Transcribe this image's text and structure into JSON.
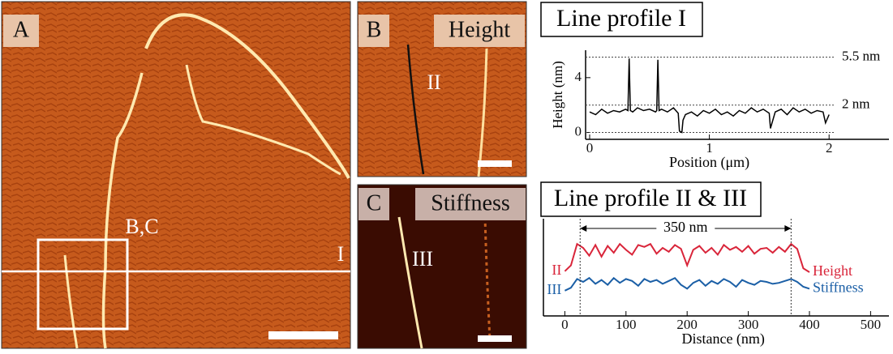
{
  "images": [
    {
      "label": "A",
      "annotations": [
        "B,C",
        "I"
      ]
    },
    {
      "label": "B",
      "title": "Height",
      "annotations": [
        "II"
      ]
    },
    {
      "label": "C",
      "title": "Stiffness",
      "annotations": [
        "III"
      ]
    }
  ],
  "chart_data": [
    {
      "type": "line",
      "title": "Line profile I",
      "xlabel": "Position (μm)",
      "ylabel": "Height (nm)",
      "color": "#000000",
      "x": [
        0,
        0.05,
        0.1,
        0.15,
        0.2,
        0.25,
        0.3,
        0.32,
        0.33,
        0.34,
        0.36,
        0.4,
        0.45,
        0.5,
        0.55,
        0.56,
        0.57,
        0.58,
        0.6,
        0.65,
        0.7,
        0.72,
        0.74,
        0.75,
        0.77,
        0.78,
        0.8,
        0.85,
        0.9,
        0.95,
        1.0,
        1.05,
        1.1,
        1.15,
        1.2,
        1.25,
        1.3,
        1.35,
        1.4,
        1.45,
        1.5,
        1.51,
        1.55,
        1.6,
        1.65,
        1.7,
        1.75,
        1.8,
        1.85,
        1.9,
        1.95,
        1.97,
        2.0
      ],
      "values": [
        1.5,
        1.3,
        1.7,
        1.4,
        1.6,
        1.5,
        1.7,
        1.6,
        5.4,
        1.6,
        1.5,
        1.8,
        1.6,
        1.7,
        1.5,
        1.6,
        5.3,
        1.6,
        1.7,
        1.5,
        1.8,
        1.6,
        1.4,
        0.1,
        0.0,
        0.9,
        1.3,
        1.5,
        1.2,
        1.6,
        1.4,
        1.7,
        1.3,
        1.5,
        1.2,
        1.6,
        1.4,
        1.8,
        1.5,
        1.7,
        1.4,
        0.3,
        1.5,
        1.7,
        1.3,
        1.8,
        1.5,
        1.7,
        1.4,
        1.6,
        1.5,
        0.7,
        1.3
      ],
      "xlim": [
        0,
        2.5
      ],
      "xticks": [
        0,
        1,
        2
      ],
      "ylim": [
        -0.5,
        6
      ],
      "yticks": [
        0,
        4
      ],
      "reference_lines": [
        {
          "value": 5.5,
          "label": "5.5 nm"
        },
        {
          "value": 2,
          "label": "2 nm"
        },
        {
          "value": 0
        }
      ]
    },
    {
      "type": "line",
      "title": "Line profile II & III",
      "xlabel": "Distance (nm)",
      "x": [
        0,
        10,
        20,
        30,
        40,
        50,
        60,
        70,
        80,
        90,
        100,
        110,
        120,
        130,
        140,
        150,
        160,
        170,
        180,
        190,
        200,
        210,
        220,
        230,
        240,
        250,
        260,
        270,
        280,
        290,
        300,
        310,
        320,
        330,
        340,
        350,
        360,
        370,
        380,
        390,
        400
      ],
      "series": [
        {
          "name": "Height",
          "label": "II",
          "color": "#d9253a",
          "values": [
            4.6,
            5.2,
            7.4,
            7.0,
            6.2,
            7.3,
            6.1,
            7.2,
            6.5,
            7.4,
            6.8,
            6.3,
            7.3,
            7.1,
            7.4,
            6.4,
            7.0,
            6.6,
            7.3,
            6.9,
            5.2,
            6.8,
            7.2,
            6.5,
            7.0,
            6.3,
            7.3,
            6.8,
            7.1,
            6.6,
            7.2,
            6.4,
            6.9,
            7.0,
            6.5,
            7.1,
            6.6,
            7.4,
            6.9,
            4.9,
            4.5
          ]
        },
        {
          "name": "Stiffness",
          "label": "III",
          "color": "#1b5fa6",
          "values": [
            2.6,
            2.9,
            3.8,
            3.5,
            3.9,
            3.3,
            3.7,
            3.2,
            3.9,
            3.4,
            3.8,
            3.6,
            3.1,
            3.8,
            3.5,
            3.7,
            3.3,
            3.6,
            3.9,
            3.2,
            2.8,
            3.4,
            3.7,
            3.1,
            3.6,
            3.3,
            3.8,
            3.5,
            3.0,
            3.7,
            3.4,
            3.2,
            3.6,
            3.5,
            3.3,
            3.4,
            3.6,
            3.8,
            3.5,
            3.0,
            2.8
          ]
        }
      ],
      "xlim": [
        -35,
        530
      ],
      "xticks": [
        0,
        100,
        200,
        300,
        400,
        500
      ],
      "ylim": [
        0,
        10
      ],
      "span": {
        "text": "350 nm",
        "start": 25,
        "end": 370
      }
    }
  ]
}
